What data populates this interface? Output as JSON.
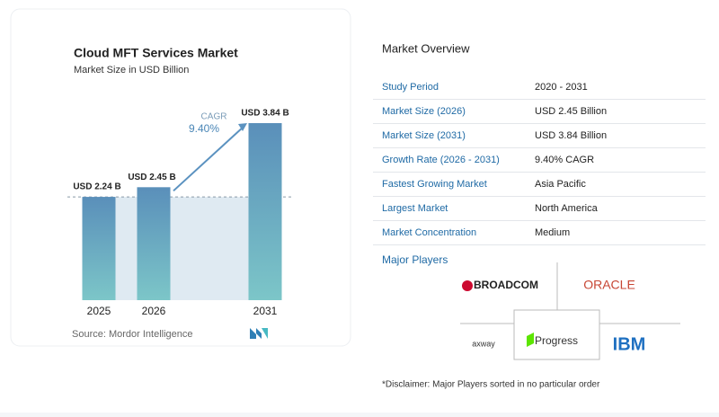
{
  "chart_data": {
    "type": "bar",
    "title": "Cloud MFT Services Market",
    "subtitle": "Market Size in USD Billion",
    "categories": [
      "2025",
      "2026",
      "2031"
    ],
    "values": [
      2.24,
      2.45,
      3.84
    ],
    "value_labels": [
      "USD 2.24 B",
      "USD 2.45 B",
      "USD 3.84 B"
    ],
    "annotation": {
      "label": "CAGR",
      "value": "9.40%"
    },
    "source": "Source:  Mordor Intelligence"
  },
  "overview": {
    "title": "Market Overview",
    "rows": [
      [
        "Study Period",
        "2020 - 2031"
      ],
      [
        "Market Size (2026)",
        "USD 2.45 Billion"
      ],
      [
        "Market Size (2031)",
        "USD 3.84 Billion"
      ],
      [
        "Growth Rate (2026 - 2031)",
        "9.40% CAGR"
      ],
      [
        "Fastest Growing Market",
        "Asia Pacific"
      ],
      [
        "Largest Market",
        "North America"
      ],
      [
        "Market Concentration",
        "Medium"
      ]
    ]
  },
  "major_players": {
    "title": "Major Players",
    "players": [
      "BROADCOM",
      "ORACLE",
      "axway",
      "Progress",
      "IBM"
    ]
  },
  "disclaimer": "*Disclaimer: Major Players sorted in no particular order"
}
